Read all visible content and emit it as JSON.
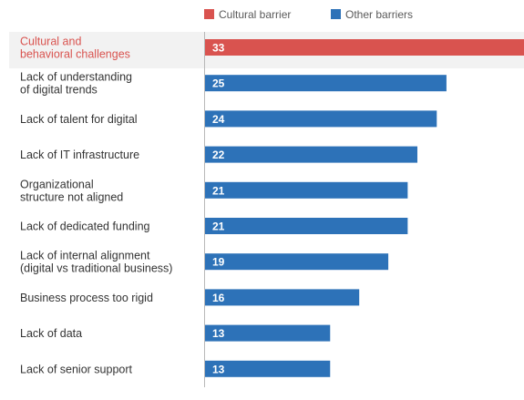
{
  "chart_data": {
    "type": "bar",
    "orientation": "horizontal",
    "title": "",
    "xlabel": "",
    "ylabel": "",
    "xlim": [
      0,
      33
    ],
    "grid": false,
    "legend_position": "top",
    "legend": [
      {
        "label": "Cultural barrier",
        "color": "#d9534f"
      },
      {
        "label": "Other barriers",
        "color": "#2d72b8"
      }
    ],
    "categories": [
      [
        "Cultural and",
        "behavioral challenges"
      ],
      [
        "Lack of understanding",
        "of digital trends"
      ],
      [
        "Lack of talent for digital"
      ],
      [
        "Lack of IT infrastructure"
      ],
      [
        "Organizational",
        "structure not aligned"
      ],
      [
        "Lack of dedicated funding"
      ],
      [
        "Lack of internal alignment",
        "(digital vs traditional business)"
      ],
      [
        "Business process too rigid"
      ],
      [
        "Lack of data"
      ],
      [
        "Lack of senior support"
      ]
    ],
    "values": [
      33,
      25,
      24,
      22,
      21,
      21,
      19,
      16,
      13,
      13
    ],
    "series_index": [
      0,
      1,
      1,
      1,
      1,
      1,
      1,
      1,
      1,
      1
    ]
  }
}
